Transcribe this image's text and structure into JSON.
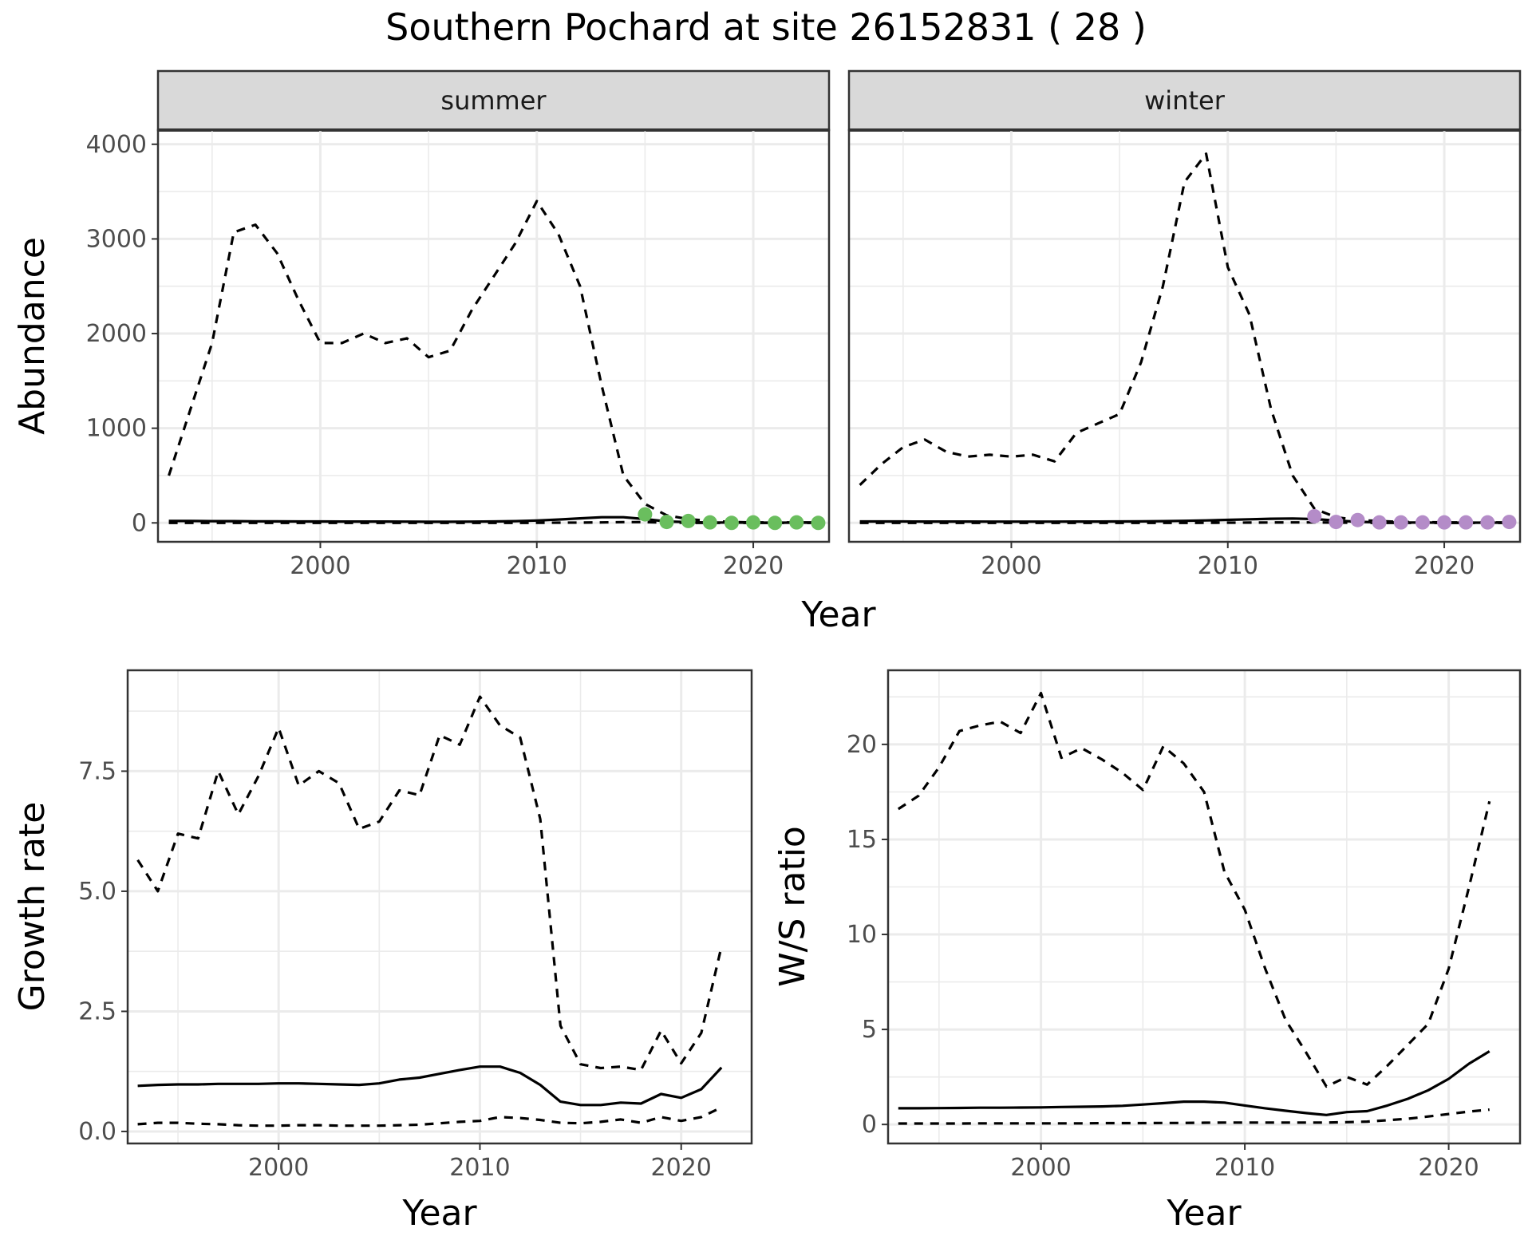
{
  "title": "Southern Pochard at site 26152831 ( 28 )",
  "chart_data": [
    {
      "type": "line",
      "panel": "abundance",
      "facets": [
        "summer",
        "winter"
      ],
      "xlabel": "Year",
      "ylabel": "Abundance",
      "xlim": [
        1992.5,
        2023.5
      ],
      "ylim": [
        -200,
        4150
      ],
      "x_ticks": [
        2000,
        2010,
        2020
      ],
      "y_ticks": [
        0,
        1000,
        2000,
        3000,
        4000
      ],
      "grid": true,
      "summer": {
        "x": [
          1993,
          1994,
          1995,
          1996,
          1997,
          1998,
          1999,
          2000,
          2001,
          2002,
          2003,
          2004,
          2005,
          2006,
          2007,
          2008,
          2009,
          2010,
          2011,
          2012,
          2013,
          2014,
          2015,
          2016,
          2017,
          2018,
          2019,
          2020,
          2021,
          2022,
          2023
        ],
        "median": [
          20,
          20,
          18,
          18,
          17,
          16,
          15,
          15,
          14,
          14,
          14,
          13,
          12,
          12,
          13,
          15,
          18,
          25,
          35,
          48,
          60,
          60,
          40,
          15,
          8,
          4,
          3,
          2,
          2,
          2,
          2
        ],
        "upper": [
          500,
          1200,
          1900,
          3070,
          3150,
          2850,
          2350,
          1900,
          1900,
          2000,
          1900,
          1950,
          1750,
          1820,
          2250,
          2600,
          2950,
          3400,
          3050,
          2500,
          1450,
          500,
          200,
          80,
          40,
          20,
          10,
          5,
          5,
          5,
          5
        ],
        "lower": [
          0,
          0,
          0,
          0,
          0,
          0,
          0,
          0,
          0,
          0,
          0,
          0,
          0,
          0,
          0,
          0,
          0,
          1,
          2,
          3,
          5,
          8,
          8,
          3,
          1,
          0,
          0,
          0,
          0,
          0,
          0
        ],
        "obs_x": [
          2015,
          2016,
          2017,
          2018,
          2019,
          2020,
          2021,
          2022,
          2023
        ],
        "obs_y": [
          90,
          10,
          20,
          5,
          0,
          5,
          0,
          5,
          0
        ],
        "obs_color": "#6ABE5E"
      },
      "winter": {
        "x": [
          1993,
          1994,
          1995,
          1996,
          1997,
          1998,
          1999,
          2000,
          2001,
          2002,
          2003,
          2004,
          2005,
          2006,
          2007,
          2008,
          2009,
          2010,
          2011,
          2012,
          2013,
          2014,
          2015,
          2016,
          2017,
          2018,
          2019,
          2020,
          2021,
          2022,
          2023
        ],
        "median": [
          15,
          15,
          15,
          14,
          14,
          14,
          13,
          13,
          13,
          13,
          14,
          14,
          15,
          16,
          18,
          22,
          26,
          32,
          38,
          44,
          46,
          40,
          25,
          12,
          6,
          4,
          3,
          2,
          2,
          2,
          2
        ],
        "upper": [
          400,
          620,
          800,
          880,
          750,
          700,
          720,
          700,
          720,
          650,
          950,
          1050,
          1150,
          1700,
          2500,
          3600,
          3900,
          2700,
          2200,
          1200,
          500,
          150,
          60,
          30,
          20,
          10,
          8,
          5,
          5,
          5,
          5
        ],
        "lower": [
          0,
          0,
          0,
          0,
          0,
          0,
          0,
          0,
          0,
          0,
          0,
          0,
          0,
          0,
          0,
          0,
          1,
          2,
          3,
          4,
          5,
          5,
          3,
          1,
          0,
          0,
          0,
          0,
          0,
          0,
          0
        ],
        "obs_x": [
          2014,
          2015,
          2016,
          2017,
          2018,
          2019,
          2020,
          2021,
          2022,
          2023
        ],
        "obs_y": [
          70,
          10,
          30,
          5,
          5,
          5,
          5,
          5,
          5,
          10
        ],
        "obs_color": "#B48CC8"
      }
    },
    {
      "type": "line",
      "panel": "growth-rate",
      "xlabel": "Year",
      "ylabel": "Growth rate",
      "xlim": [
        1992.5,
        2023.5
      ],
      "ylim": [
        -0.25,
        9.6
      ],
      "x_ticks": [
        2000,
        2010,
        2020
      ],
      "y_ticks": [
        0.0,
        2.5,
        5.0,
        7.5
      ],
      "y_tick_labels": [
        "0.0",
        "2.5",
        "5.0",
        "7.5"
      ],
      "grid": true,
      "x": [
        1993,
        1994,
        1995,
        1996,
        1997,
        1998,
        1999,
        2000,
        2001,
        2002,
        2003,
        2004,
        2005,
        2006,
        2007,
        2008,
        2009,
        2010,
        2011,
        2012,
        2013,
        2014,
        2015,
        2016,
        2017,
        2018,
        2019,
        2020,
        2021,
        2022
      ],
      "median": [
        0.95,
        0.97,
        0.98,
        0.98,
        0.99,
        0.99,
        0.99,
        1.0,
        1.0,
        0.99,
        0.98,
        0.97,
        1.0,
        1.08,
        1.12,
        1.2,
        1.28,
        1.35,
        1.35,
        1.22,
        0.97,
        0.62,
        0.55,
        0.55,
        0.6,
        0.58,
        0.78,
        0.7,
        0.88,
        1.33
      ],
      "upper": [
        5.65,
        5.0,
        6.2,
        6.1,
        7.5,
        6.6,
        7.4,
        8.4,
        7.2,
        7.5,
        7.25,
        6.3,
        6.45,
        7.1,
        7.0,
        8.25,
        8.05,
        9.05,
        8.45,
        8.2,
        6.5,
        2.2,
        1.4,
        1.32,
        1.35,
        1.28,
        2.1,
        1.42,
        2.05,
        3.85
      ],
      "lower": [
        0.15,
        0.18,
        0.18,
        0.16,
        0.15,
        0.13,
        0.12,
        0.12,
        0.13,
        0.13,
        0.12,
        0.12,
        0.12,
        0.13,
        0.14,
        0.17,
        0.2,
        0.22,
        0.3,
        0.28,
        0.24,
        0.18,
        0.17,
        0.2,
        0.25,
        0.18,
        0.3,
        0.22,
        0.3,
        0.5
      ]
    },
    {
      "type": "line",
      "panel": "ws-ratio",
      "xlabel": "Year",
      "ylabel": "W/S ratio",
      "xlim": [
        1992.5,
        2023.5
      ],
      "ylim": [
        -1.0,
        23.9
      ],
      "x_ticks": [
        2000,
        2010,
        2020
      ],
      "y_ticks": [
        0,
        5,
        10,
        15,
        20
      ],
      "grid": true,
      "x": [
        1993,
        1994,
        1995,
        1996,
        1997,
        1998,
        1999,
        2000,
        2001,
        2002,
        2003,
        2004,
        2005,
        2006,
        2007,
        2008,
        2009,
        2010,
        2011,
        2012,
        2013,
        2014,
        2015,
        2016,
        2017,
        2018,
        2019,
        2020,
        2021,
        2022
      ],
      "median": [
        0.85,
        0.85,
        0.86,
        0.87,
        0.88,
        0.88,
        0.89,
        0.9,
        0.92,
        0.93,
        0.95,
        0.98,
        1.05,
        1.12,
        1.2,
        1.2,
        1.15,
        1.0,
        0.85,
        0.72,
        0.6,
        0.5,
        0.65,
        0.7,
        1.0,
        1.35,
        1.8,
        2.4,
        3.2,
        3.85
      ],
      "upper": [
        16.6,
        17.3,
        18.8,
        20.7,
        21.0,
        21.2,
        20.6,
        22.7,
        19.3,
        19.8,
        19.2,
        18.5,
        17.6,
        19.9,
        19.0,
        17.5,
        13.3,
        11.3,
        8.2,
        5.5,
        3.8,
        2.0,
        2.5,
        2.1,
        3.1,
        4.2,
        5.3,
        8.2,
        12.5,
        17.0
      ],
      "lower": [
        0.05,
        0.05,
        0.05,
        0.05,
        0.06,
        0.06,
        0.06,
        0.06,
        0.06,
        0.06,
        0.07,
        0.07,
        0.07,
        0.08,
        0.08,
        0.09,
        0.1,
        0.1,
        0.1,
        0.1,
        0.1,
        0.1,
        0.12,
        0.15,
        0.22,
        0.3,
        0.42,
        0.55,
        0.68,
        0.78
      ]
    }
  ]
}
